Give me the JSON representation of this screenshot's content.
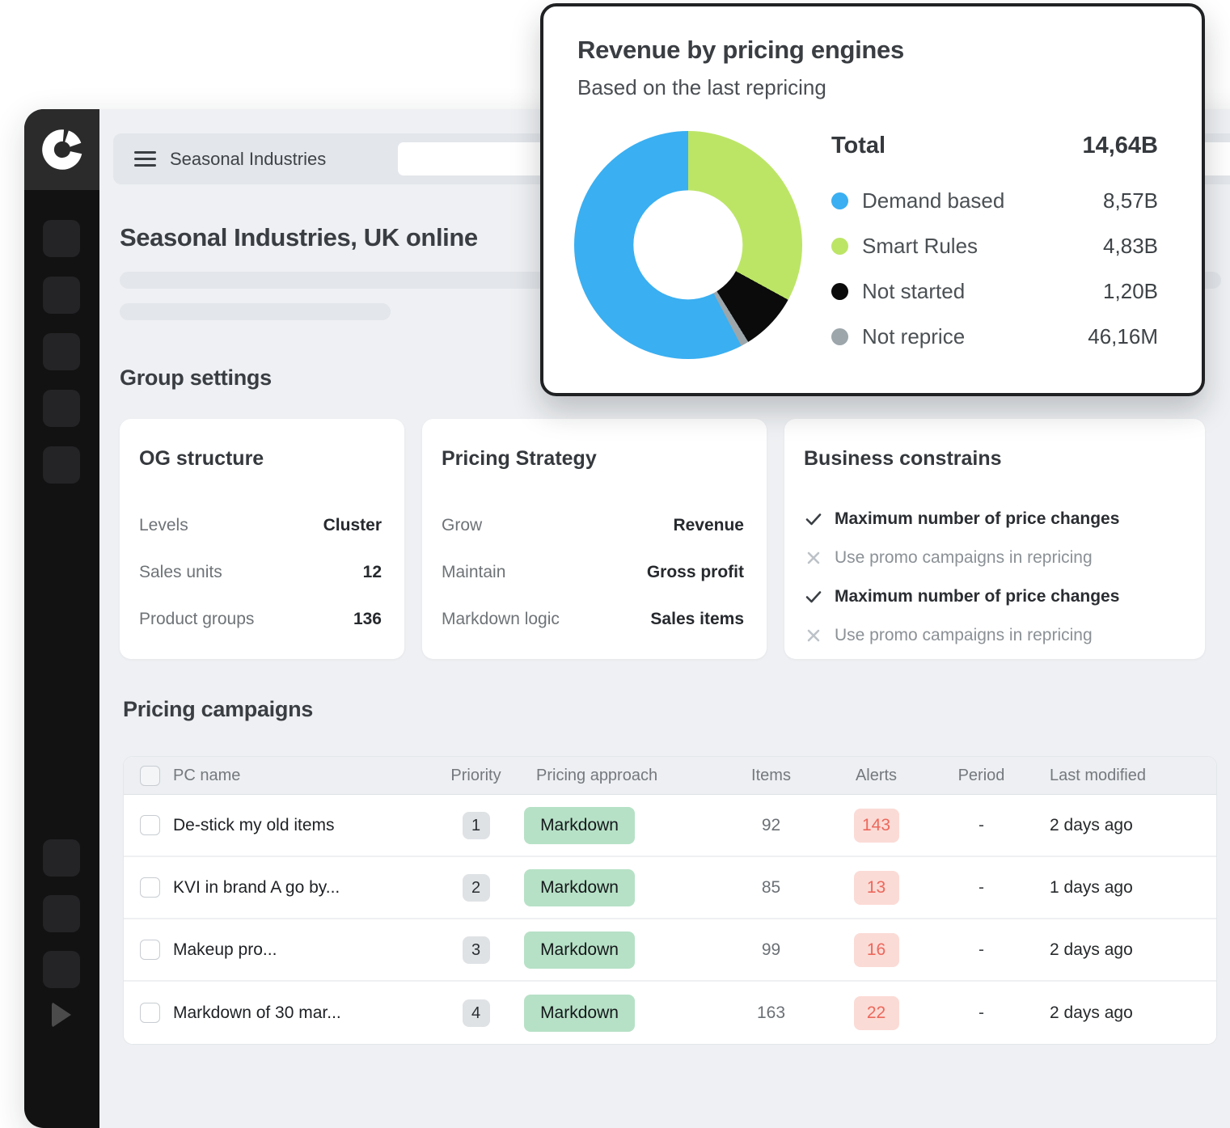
{
  "sidebar": {
    "logo": "donut-logo",
    "nav_placeholders": 5,
    "bottom_placeholders": 3
  },
  "header": {
    "breadcrumb": "Seasonal Industries",
    "search_value": "",
    "search_placeholder": ""
  },
  "page": {
    "title": "Seasonal Industries, UK online",
    "group_settings_heading": "Group settings",
    "campaigns_heading": "Pricing campaigns"
  },
  "group_settings": {
    "og_structure": {
      "title": "OG structure",
      "rows": [
        {
          "label": "Levels",
          "value": "Cluster"
        },
        {
          "label": "Sales units",
          "value": "12"
        },
        {
          "label": "Product groups",
          "value": "136"
        }
      ]
    },
    "pricing_strategy": {
      "title": "Pricing Strategy",
      "rows": [
        {
          "label": "Grow",
          "value": "Revenue"
        },
        {
          "label": "Maintain",
          "value": "Gross profit"
        },
        {
          "label": "Markdown logic",
          "value": "Sales items"
        }
      ]
    },
    "business_constrains": {
      "title": "Business constrains",
      "rows": [
        {
          "state": "checked",
          "text": "Maximum number of price changes"
        },
        {
          "state": "crossed",
          "text": "Use promo campaigns in repricing"
        },
        {
          "state": "checked",
          "text": "Maximum number of price changes"
        },
        {
          "state": "crossed",
          "text": "Use promo campaigns in repricing"
        }
      ]
    }
  },
  "campaigns_table": {
    "columns": {
      "name": "PC name",
      "priority": "Priority",
      "approach": "Pricing approach",
      "items": "Items",
      "alerts": "Alerts",
      "period": "Period",
      "modified": "Last modified"
    },
    "rows": [
      {
        "name": "De-stick my old items",
        "priority": "1",
        "approach": "Markdown",
        "items": "92",
        "alerts": "143",
        "period": "-",
        "modified": "2 days ago"
      },
      {
        "name": "KVI in brand A go by...",
        "priority": "2",
        "approach": "Markdown",
        "items": "85",
        "alerts": "13",
        "period": "-",
        "modified": "1 days ago"
      },
      {
        "name": "Makeup pro...",
        "priority": "3",
        "approach": "Markdown",
        "items": "99",
        "alerts": "16",
        "period": "-",
        "modified": "2 days ago"
      },
      {
        "name": "Markdown of 30 mar...",
        "priority": "4",
        "approach": "Markdown",
        "items": "163",
        "alerts": "22",
        "period": "-",
        "modified": "2 days ago"
      }
    ],
    "badge_colors": {
      "approach_bg": "#B6E1C6",
      "approach_text": "#15181B",
      "alerts_bg": "#FBDBD6",
      "alerts_text": "#EC685C"
    }
  },
  "chart_data": {
    "type": "pie",
    "subtype": "donut",
    "title": "Revenue by pricing engines",
    "subtitle": "Based on the last repricing",
    "total_label": "Total",
    "total_value_text": "14,64B",
    "total_value_billions": 14.64,
    "legend_position": "right",
    "donut_hole_ratio": 0.48,
    "segments": [
      {
        "label": "Demand based",
        "value_text": "8,57B",
        "value_billions": 8.57,
        "color": "#3AAFF1"
      },
      {
        "label": "Smart Rules",
        "value_text": "4,83B",
        "value_billions": 4.83,
        "color": "#BCE566"
      },
      {
        "label": "Not started",
        "value_text": "1,20B",
        "value_billions": 1.2,
        "color": "#0B0B0C"
      },
      {
        "label": "Not reprice",
        "value_text": "46,16M",
        "value_billions": 0.04616,
        "color": "#9CA6AB"
      }
    ],
    "draw_order_clockwise_from_top": [
      1,
      2,
      3,
      0
    ]
  }
}
